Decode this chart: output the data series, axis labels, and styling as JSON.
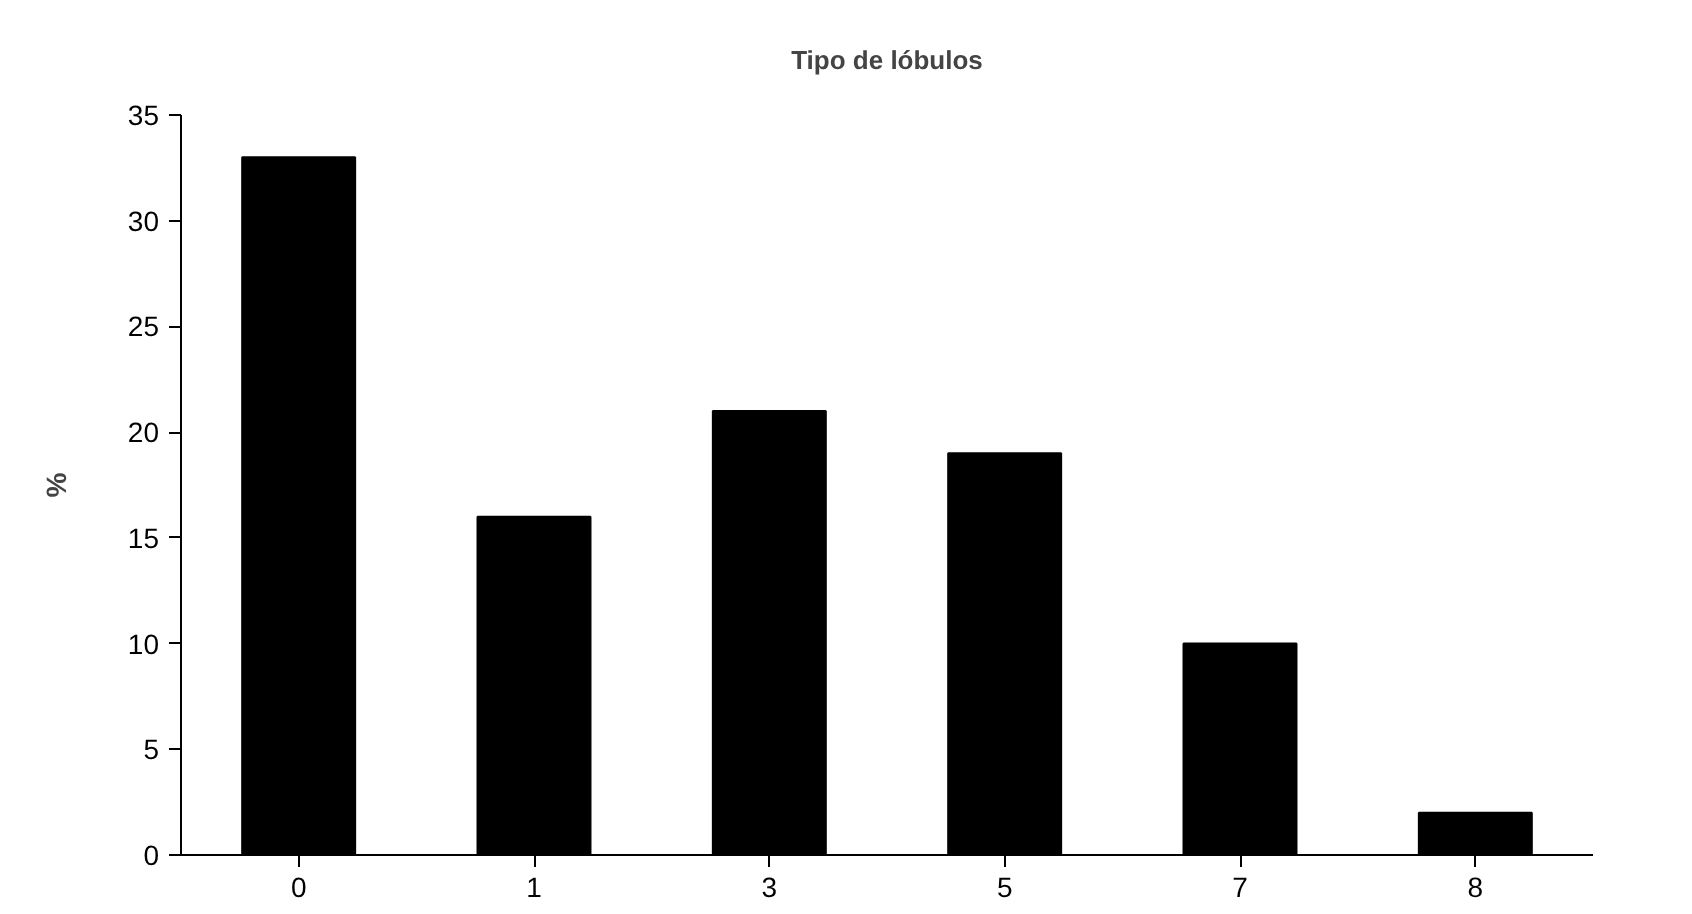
{
  "chart_data": {
    "type": "bar",
    "title": "Tipo de lóbulos",
    "ylabel": "%",
    "categories": [
      "0",
      "1",
      "3",
      "5",
      "7",
      "8"
    ],
    "values": [
      33,
      16,
      21,
      19,
      10,
      2
    ],
    "color": "#000000",
    "ylim": [
      0,
      35
    ],
    "yticks": [
      0,
      5,
      10,
      15,
      20,
      25,
      30,
      35
    ],
    "grid": false
  }
}
